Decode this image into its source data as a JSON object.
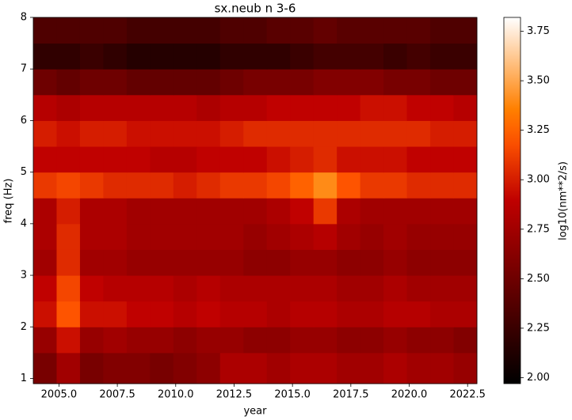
{
  "chart_data": {
    "type": "heatmap",
    "title": "sx.neub n 3-6",
    "x_label": "year",
    "y_label": "freq (Hz)",
    "colorbar_label": "log10(nm**2/s)",
    "colormap": "gist_heat",
    "clim": [
      1.97,
      3.82
    ],
    "xlim": [
      2003.9,
      2022.9
    ],
    "ylim": [
      0.9,
      8
    ],
    "x_edges": [
      2003.9,
      2004.9,
      2005.9,
      2006.9,
      2007.9,
      2008.9,
      2009.9,
      2010.9,
      2011.9,
      2012.9,
      2013.9,
      2014.9,
      2015.9,
      2016.9,
      2017.9,
      2018.9,
      2019.9,
      2020.9,
      2021.9,
      2022.9
    ],
    "y_edges": [
      0.9,
      1.5,
      2,
      2.5,
      3,
      3.5,
      4,
      4.5,
      5,
      5.5,
      6,
      6.5,
      7,
      7.5,
      8
    ],
    "values": [
      [
        2.55,
        2.75,
        2.55,
        2.6,
        2.6,
        2.55,
        2.6,
        2.65,
        2.8,
        2.8,
        2.75,
        2.8,
        2.8,
        2.75,
        2.75,
        2.8,
        2.75,
        2.75,
        2.7
      ],
      [
        2.7,
        2.95,
        2.7,
        2.75,
        2.7,
        2.7,
        2.65,
        2.7,
        2.7,
        2.65,
        2.65,
        2.7,
        2.7,
        2.65,
        2.65,
        2.7,
        2.65,
        2.65,
        2.6
      ],
      [
        2.95,
        3.2,
        2.95,
        2.95,
        2.9,
        2.9,
        2.85,
        2.9,
        2.85,
        2.85,
        2.8,
        2.85,
        2.85,
        2.8,
        2.8,
        2.85,
        2.85,
        2.8,
        2.8
      ],
      [
        2.9,
        3.15,
        2.9,
        2.85,
        2.85,
        2.85,
        2.8,
        2.85,
        2.8,
        2.8,
        2.8,
        2.8,
        2.8,
        2.75,
        2.75,
        2.8,
        2.75,
        2.75,
        2.75
      ],
      [
        2.75,
        3.05,
        2.75,
        2.75,
        2.7,
        2.7,
        2.7,
        2.7,
        2.7,
        2.65,
        2.65,
        2.7,
        2.7,
        2.65,
        2.65,
        2.7,
        2.65,
        2.65,
        2.65
      ],
      [
        2.8,
        3.05,
        2.8,
        2.8,
        2.75,
        2.75,
        2.75,
        2.75,
        2.75,
        2.7,
        2.75,
        2.8,
        2.85,
        2.75,
        2.7,
        2.75,
        2.7,
        2.7,
        2.7
      ],
      [
        2.8,
        3.0,
        2.8,
        2.8,
        2.75,
        2.75,
        2.75,
        2.75,
        2.75,
        2.75,
        2.8,
        2.9,
        3.1,
        2.8,
        2.75,
        2.75,
        2.75,
        2.75,
        2.75
      ],
      [
        3.1,
        3.15,
        3.1,
        3.05,
        3.05,
        3.05,
        3.0,
        3.05,
        3.1,
        3.1,
        3.15,
        3.25,
        3.4,
        3.2,
        3.1,
        3.1,
        3.05,
        3.05,
        3.05
      ],
      [
        2.9,
        2.9,
        2.9,
        2.9,
        2.9,
        2.85,
        2.85,
        2.9,
        2.9,
        2.9,
        2.95,
        3.0,
        3.05,
        2.95,
        2.95,
        2.95,
        2.9,
        2.9,
        2.9
      ],
      [
        3.0,
        2.95,
        3.0,
        3.0,
        2.95,
        2.95,
        2.95,
        2.95,
        3.0,
        3.05,
        3.05,
        3.05,
        3.05,
        3.05,
        3.05,
        3.05,
        3.05,
        3.0,
        3.0
      ],
      [
        2.85,
        2.8,
        2.85,
        2.85,
        2.85,
        2.85,
        2.85,
        2.8,
        2.85,
        2.85,
        2.9,
        2.9,
        2.9,
        2.9,
        2.95,
        2.95,
        2.9,
        2.9,
        2.85
      ],
      [
        2.5,
        2.45,
        2.5,
        2.5,
        2.45,
        2.45,
        2.45,
        2.45,
        2.5,
        2.55,
        2.55,
        2.55,
        2.6,
        2.6,
        2.6,
        2.55,
        2.55,
        2.5,
        2.5
      ],
      [
        2.2,
        2.2,
        2.25,
        2.2,
        2.15,
        2.15,
        2.15,
        2.15,
        2.2,
        2.2,
        2.2,
        2.25,
        2.3,
        2.3,
        2.3,
        2.25,
        2.3,
        2.25,
        2.25
      ],
      [
        2.35,
        2.35,
        2.35,
        2.35,
        2.3,
        2.3,
        2.3,
        2.3,
        2.35,
        2.35,
        2.4,
        2.4,
        2.45,
        2.4,
        2.4,
        2.4,
        2.4,
        2.35,
        2.35
      ]
    ],
    "xticks": [
      {
        "value": 2005,
        "label": "2005.0"
      },
      {
        "value": 2007.5,
        "label": "2007.5"
      },
      {
        "value": 2010,
        "label": "2010.0"
      },
      {
        "value": 2012.5,
        "label": "2012.5"
      },
      {
        "value": 2015,
        "label": "2015.0"
      },
      {
        "value": 2017.5,
        "label": "2017.5"
      },
      {
        "value": 2020,
        "label": "2020.0"
      },
      {
        "value": 2022.5,
        "label": "2022.5"
      }
    ],
    "yticks": [
      1,
      2,
      3,
      4,
      5,
      6,
      7,
      8
    ],
    "cticks": [
      {
        "value": 2,
        "label": "2.00"
      },
      {
        "value": 2.25,
        "label": "2.25"
      },
      {
        "value": 2.5,
        "label": "2.50"
      },
      {
        "value": 2.75,
        "label": "2.75"
      },
      {
        "value": 3,
        "label": "3.00"
      },
      {
        "value": 3.25,
        "label": "3.25"
      },
      {
        "value": 3.5,
        "label": "3.50"
      },
      {
        "value": 3.75,
        "label": "3.75"
      }
    ]
  }
}
